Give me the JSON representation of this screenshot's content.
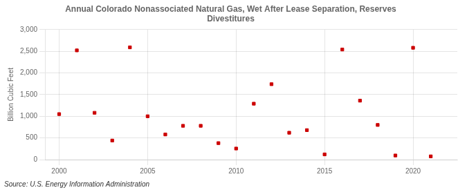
{
  "chart_data": {
    "type": "scatter",
    "title": [
      "Annual Colorado Nonassociated Natural Gas, Wet After Lease Separation, Reserves",
      "Divestitures"
    ],
    "y_label": "Billion Cubic Feet",
    "annotation": "Source: U.S. Energy Information Administration",
    "x": [
      2000,
      2001,
      2002,
      2003,
      2004,
      2005,
      2006,
      2007,
      2008,
      2009,
      2010,
      2011,
      2012,
      2013,
      2014,
      2015,
      2016,
      2017,
      2018,
      2019,
      2020,
      2021
    ],
    "values": [
      1050,
      2520,
      1080,
      440,
      2590,
      1000,
      580,
      780,
      780,
      380,
      255,
      1290,
      1740,
      620,
      680,
      120,
      2540,
      1360,
      800,
      95,
      2580,
      75
    ],
    "color": "#CC0000",
    "marker": "square",
    "xlim": [
      1999.2,
      2022.5
    ],
    "xticks": [
      2000,
      2005,
      2010,
      2015,
      2020
    ],
    "ylim": [
      0,
      3000
    ],
    "yticks": [
      0,
      500,
      {
        "value": 1000,
        "label": "1,000"
      },
      {
        "value": 1500,
        "label": "1,500"
      },
      {
        "value": 2000,
        "label": "2,000"
      },
      {
        "value": 2500,
        "label": "2,500"
      },
      {
        "value": 3000,
        "label": "3,000"
      }
    ],
    "grid": true
  }
}
